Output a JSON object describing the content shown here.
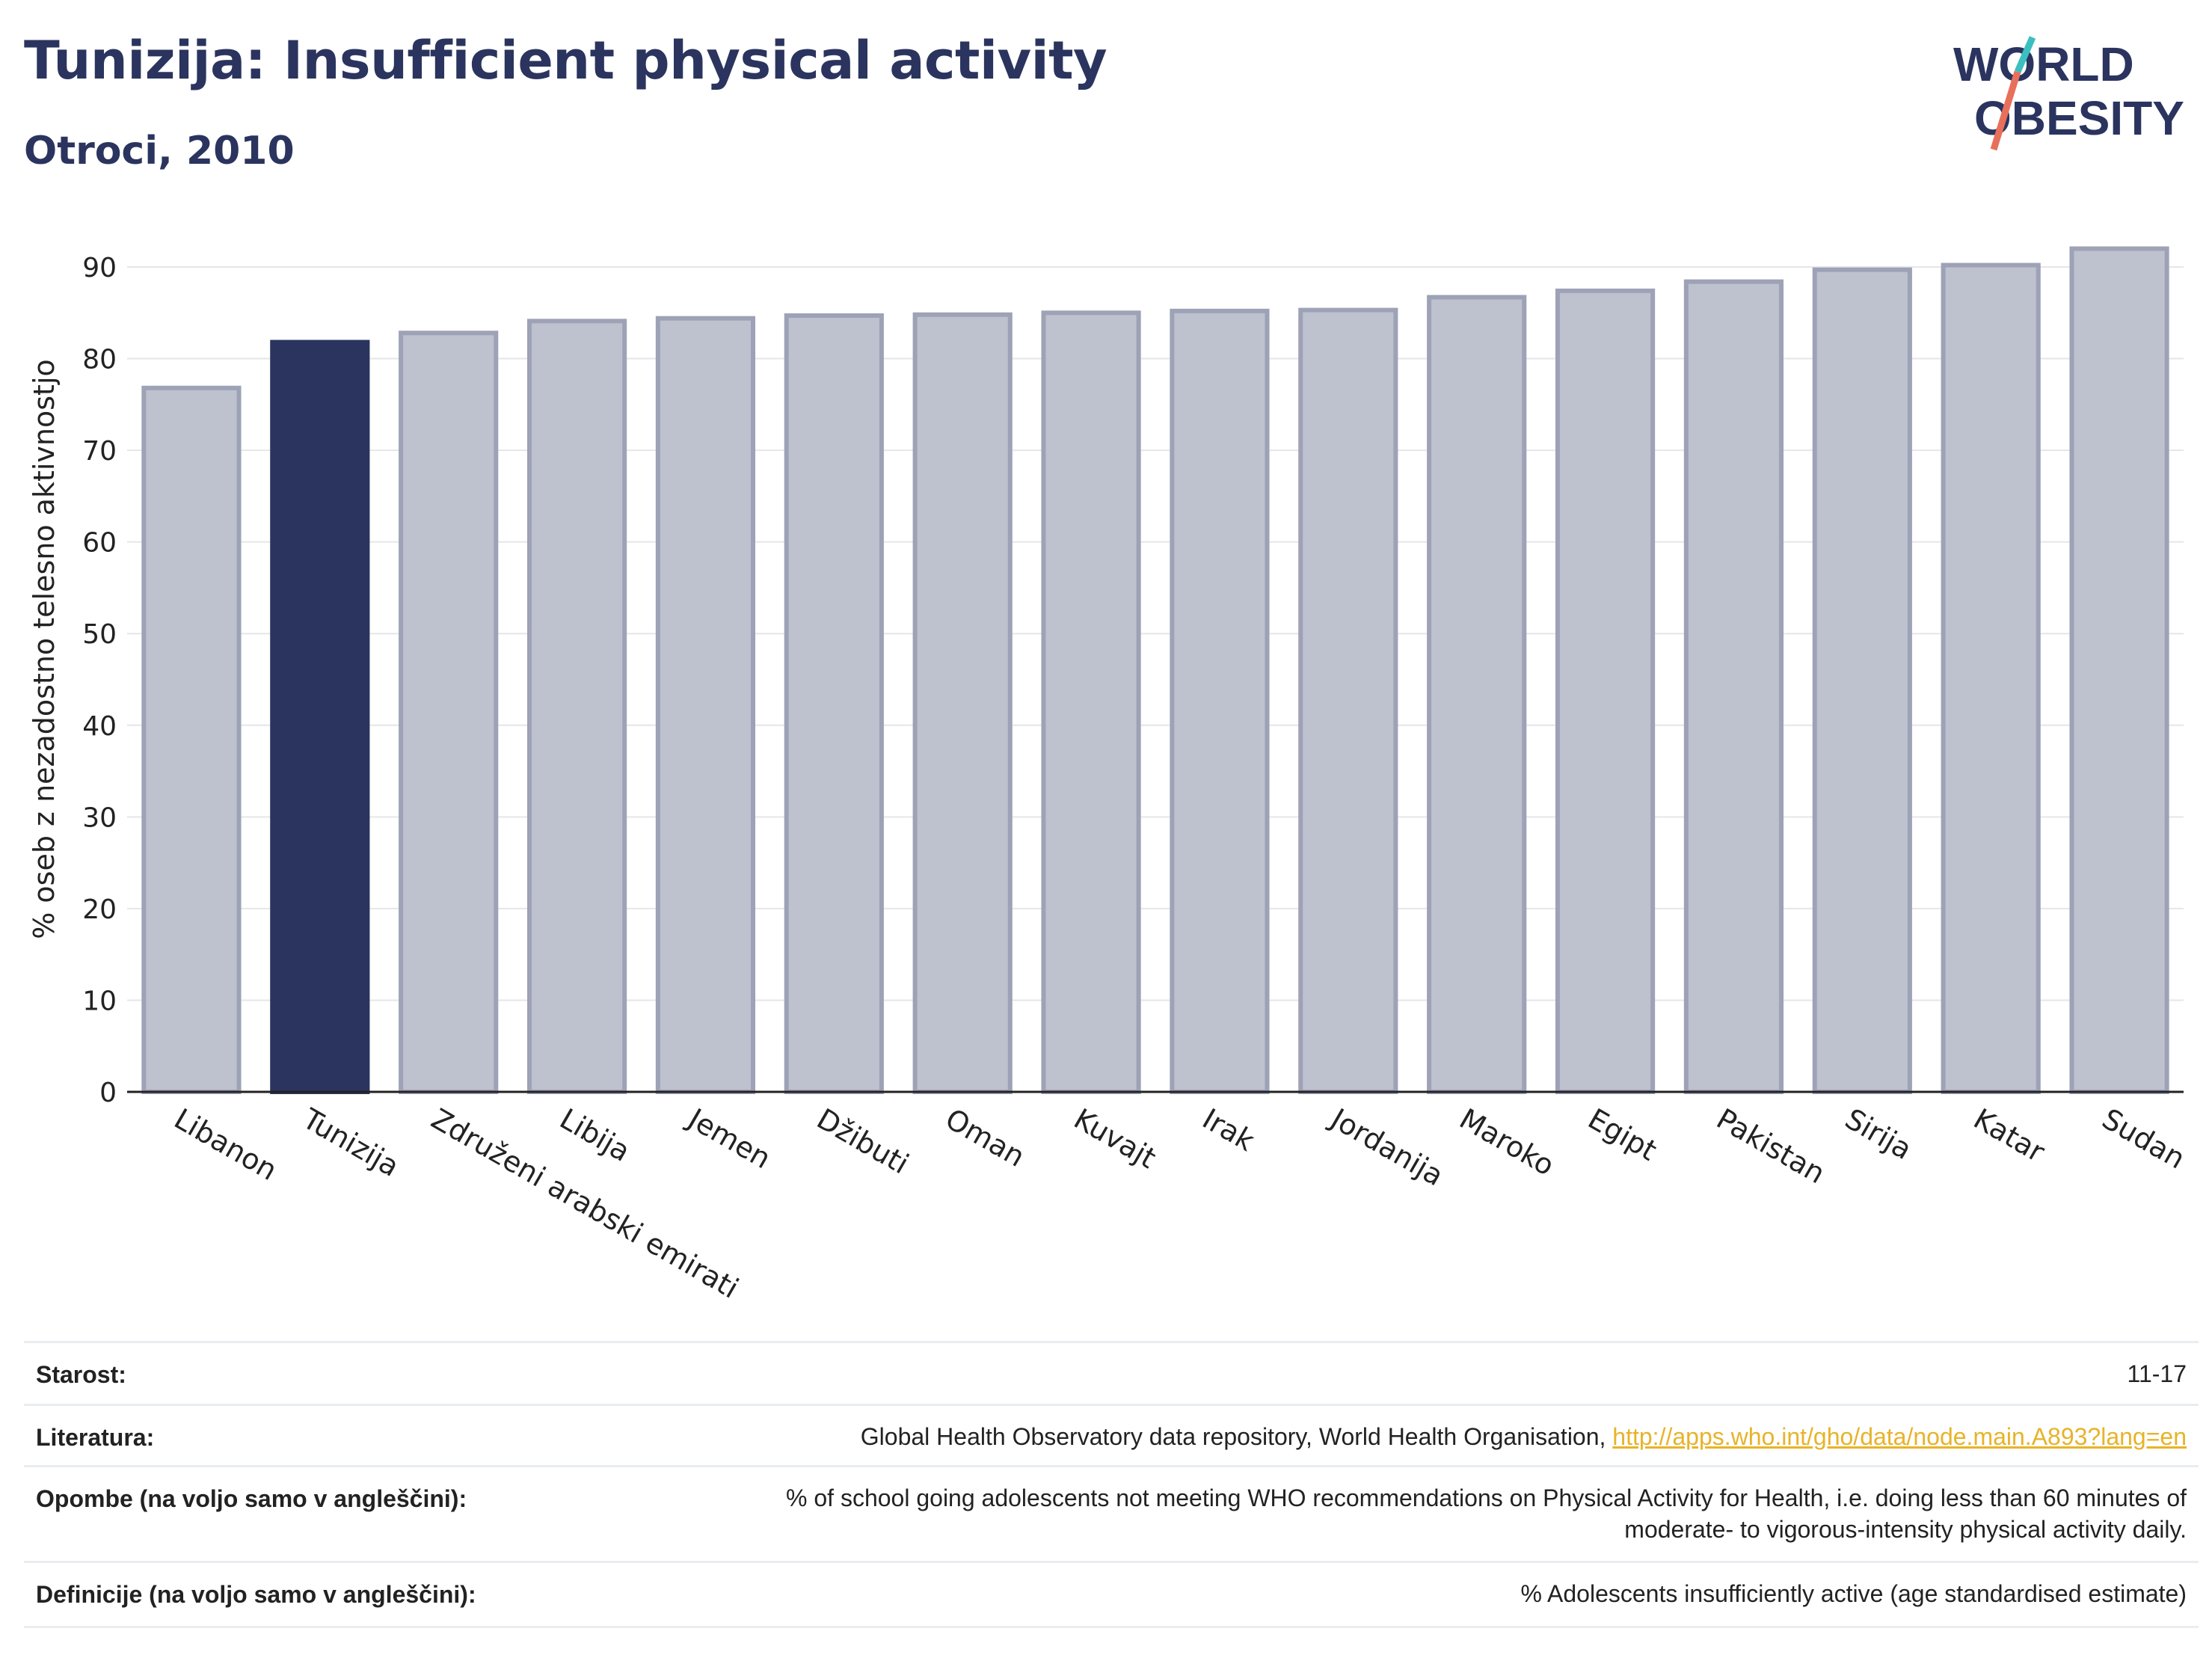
{
  "header": {
    "title": "Tunizija: Insufficient physical activity",
    "subtitle": "Otroci, 2010"
  },
  "logo": {
    "line1": "WORLD",
    "line2": "OBESITY"
  },
  "chart_data": {
    "type": "bar",
    "categories": [
      "Libanon",
      "Tunizija",
      "Združeni arabski emirati",
      "Libija",
      "Jemen",
      "Džibuti",
      "Oman",
      "Kuvajt",
      "Irak",
      "Jordanija",
      "Maroko",
      "Egipt",
      "Pakistan",
      "Sirija",
      "Katar",
      "Sudan"
    ],
    "values": [
      76.8,
      81.8,
      82.8,
      84.1,
      84.4,
      84.7,
      84.8,
      85.0,
      85.2,
      85.3,
      86.7,
      87.4,
      88.4,
      89.7,
      90.2,
      92.0
    ],
    "highlight": "Tunizija",
    "ylabel": "% oseb z nezadostno telesno aktivnostjo",
    "xlabel": "",
    "ylim": [
      0,
      95
    ],
    "yticks": [
      0,
      10,
      20,
      30,
      40,
      50,
      60,
      70,
      80,
      90
    ],
    "grid": true,
    "colors": {
      "highlight": "#2a345e",
      "bar_fill": "#bec1ce",
      "bar_stroke": "#9da2b6"
    }
  },
  "meta": {
    "age_label": "Starost:",
    "age_value": "11-17",
    "lit_label": "Literatura:",
    "lit_text": "Global Health Observatory data repository, World Health Organisation, ",
    "lit_link": "http://apps.who.int/gho/data/node.main.A893?lang=en",
    "notes_label": "Opombe (na voljo samo v angleščini):",
    "notes_line1": "% of school going adolescents not meeting WHO recommendations on Physical Activity for Health, i.e. doing less than 60 minutes of",
    "notes_line2": "moderate- to vigorous-intensity physical activity daily.",
    "def_label": "Definicije (na voljo samo v angleščini):",
    "def_value": "% Adolescents insufficiently active (age standardised estimate)"
  }
}
